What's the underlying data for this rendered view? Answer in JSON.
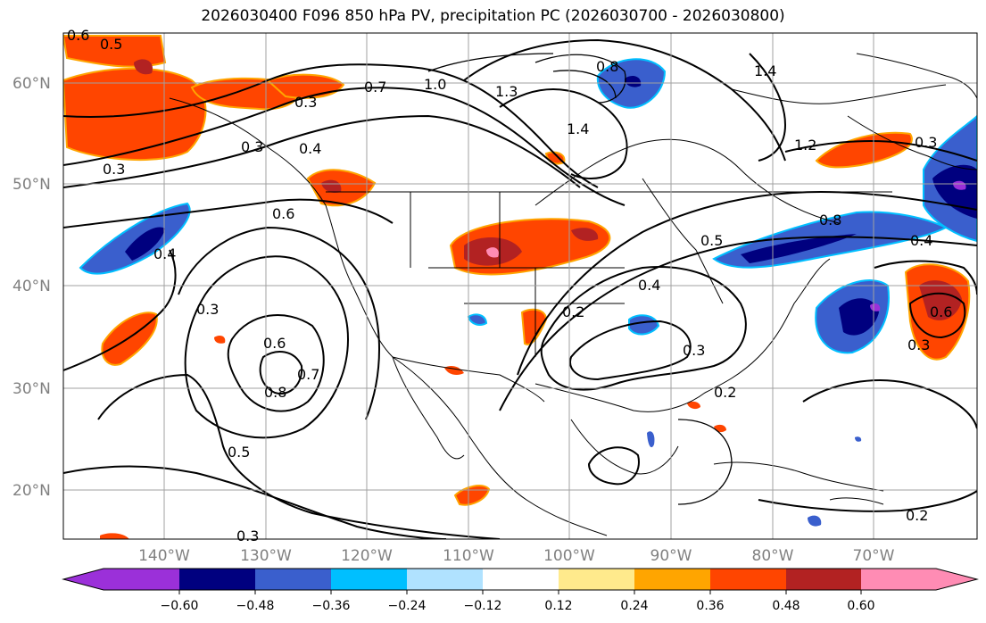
{
  "title": "2026030400 F096 850 hPa PV, precipitation PC (2026030700 - 2026030800)",
  "lat_labels": [
    "60°N",
    "50°N",
    "40°N",
    "30°N",
    "20°N"
  ],
  "lon_labels": [
    "140°W",
    "130°W",
    "120°W",
    "110°W",
    "100°W",
    "90°W",
    "80°W",
    "70°W"
  ],
  "colorbar": {
    "ticks": [
      "−0.60",
      "−0.48",
      "−0.36",
      "−0.24",
      "−0.12",
      "0.12",
      "0.24",
      "0.36",
      "0.48",
      "0.60"
    ],
    "colors": [
      "#9b30d9",
      "#00007f",
      "#3a5fcd",
      "#00bfff",
      "#b0e2ff",
      "#ffffff",
      "#ffea8c",
      "#ffa500",
      "#ff4500",
      "#b22222",
      "#ff8cb4",
      "#ff8cb4"
    ]
  },
  "contour_labels": [
    "0.5",
    "0.6",
    "0.3",
    "0.7",
    "1.0",
    "1.3",
    "0.8",
    "1.4",
    "1.4",
    "0.3",
    "0.4",
    "0.3",
    "0.6",
    "0.4",
    "0.3",
    "0.6",
    "0.7",
    "0.8",
    "0.5",
    "0.3",
    "0.2",
    "0.4",
    "0.3",
    "0.2",
    "0.5",
    "0.2",
    "1.2",
    "0.3",
    "0.6",
    "0.8",
    "0.3",
    "0.4"
  ]
}
